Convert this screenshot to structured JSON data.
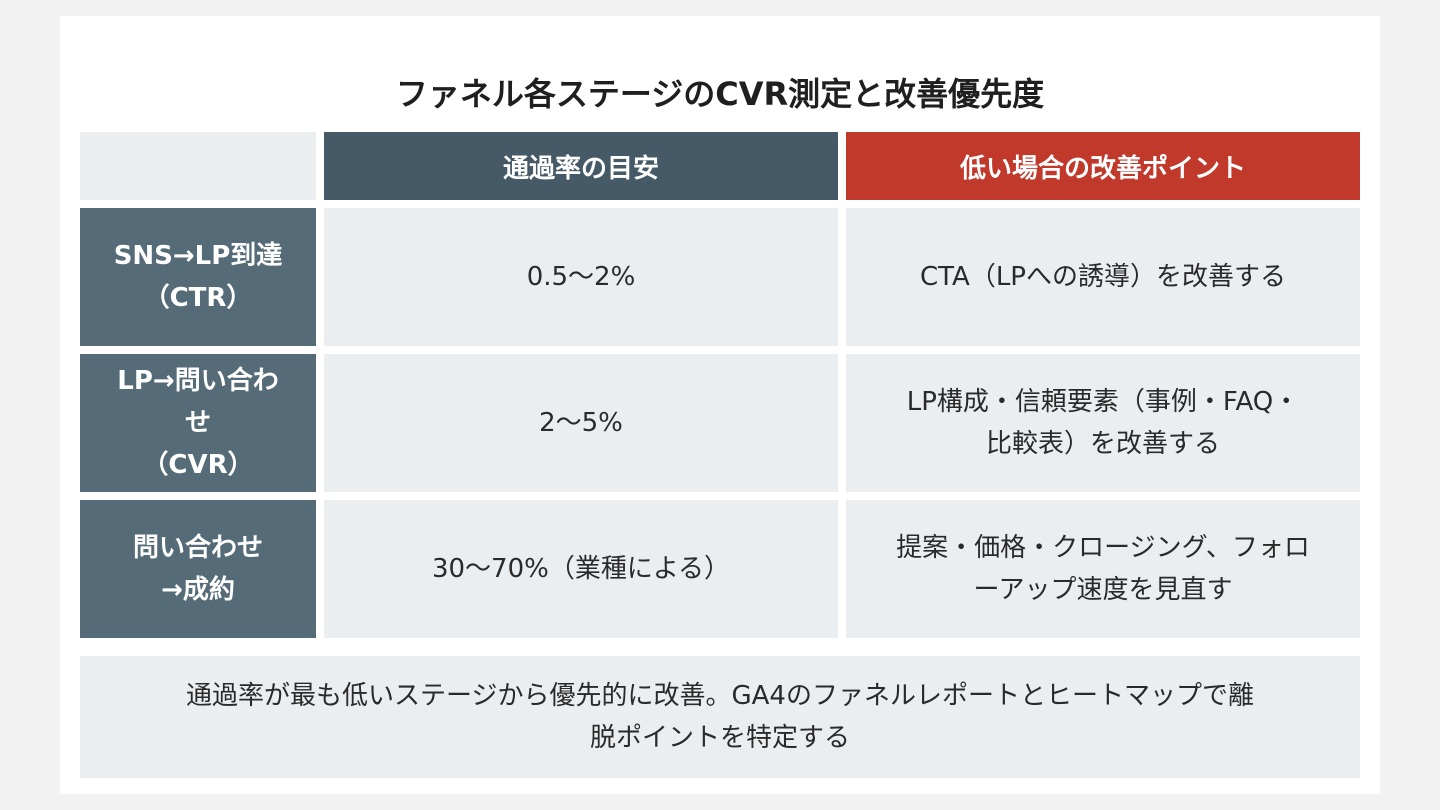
{
  "title": "ファネル各ステージのCVR測定と改善優先度",
  "table": {
    "headers": [
      "",
      "通過率の目安",
      "低い場合の改善ポイント"
    ],
    "rows": [
      {
        "stage": "SNS→LP到達\n（CTR）",
        "rate": "0.5〜2%",
        "action": "CTA（LPへの誘導）を改善する"
      },
      {
        "stage": "LP→問い合わ\nせ\n（CVR）",
        "rate": "2〜5%",
        "action": "LP構成・信頼要素（事例・FAQ・\n比較表）を改善する"
      },
      {
        "stage": "問い合わせ\n→成約",
        "rate": "30〜70%（業種による）",
        "action": "提案・価格・クロージング、フォロ\nーアップ速度を見直す"
      }
    ]
  },
  "note": "通過率が最も低いステージから優先的に改善。GA4のファネルレポートとヒートマップで離\n脱ポイントを特定する",
  "colors": {
    "header_dark": "#455a66",
    "header_red": "#c0392b",
    "row_head": "#566b78",
    "cell_bg": "#ebeef1"
  }
}
